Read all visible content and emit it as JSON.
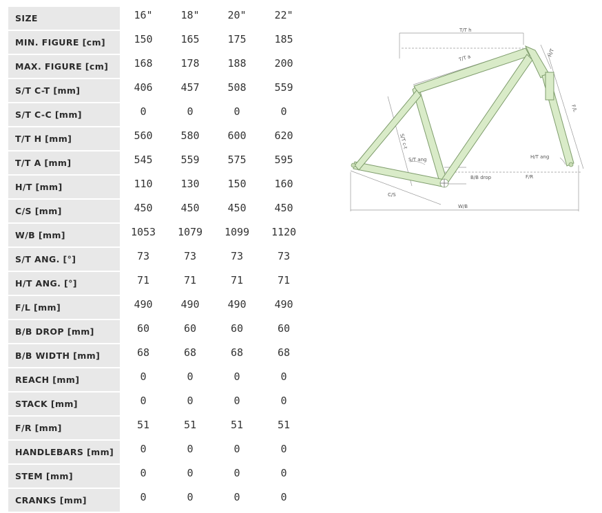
{
  "table": {
    "sizes": [
      "16\"",
      "18\"",
      "20\"",
      "22\""
    ],
    "header_label": "SIZE",
    "rows": [
      {
        "label": "MIN. FIGURE [cm]",
        "values": [
          "150",
          "165",
          "175",
          "185"
        ]
      },
      {
        "label": "MAX. FIGURE [cm]",
        "values": [
          "168",
          "178",
          "188",
          "200"
        ]
      },
      {
        "label": "S/T C-T [mm]",
        "values": [
          "406",
          "457",
          "508",
          "559"
        ]
      },
      {
        "label": "S/T C-C [mm]",
        "values": [
          "0",
          "0",
          "0",
          "0"
        ]
      },
      {
        "label": "T/T H [mm]",
        "values": [
          "560",
          "580",
          "600",
          "620"
        ]
      },
      {
        "label": "T/T A [mm]",
        "values": [
          "545",
          "559",
          "575",
          "595"
        ]
      },
      {
        "label": "H/T [mm]",
        "values": [
          "110",
          "130",
          "150",
          "160"
        ]
      },
      {
        "label": "C/S [mm]",
        "values": [
          "450",
          "450",
          "450",
          "450"
        ]
      },
      {
        "label": "W/B [mm]",
        "values": [
          "1053",
          "1079",
          "1099",
          "1120"
        ]
      },
      {
        "label": "S/T ANG. [°]",
        "values": [
          "73",
          "73",
          "73",
          "73"
        ]
      },
      {
        "label": "H/T ANG. [°]",
        "values": [
          "71",
          "71",
          "71",
          "71"
        ]
      },
      {
        "label": "F/L [mm]",
        "values": [
          "490",
          "490",
          "490",
          "490"
        ]
      },
      {
        "label": "B/B DROP [mm]",
        "values": [
          "60",
          "60",
          "60",
          "60"
        ]
      },
      {
        "label": "B/B WIDTH [mm]",
        "values": [
          "68",
          "68",
          "68",
          "68"
        ]
      },
      {
        "label": "REACH [mm]",
        "values": [
          "0",
          "0",
          "0",
          "0"
        ]
      },
      {
        "label": "STACK [mm]",
        "values": [
          "0",
          "0",
          "0",
          "0"
        ]
      },
      {
        "label": "F/R [mm]",
        "values": [
          "51",
          "51",
          "51",
          "51"
        ]
      },
      {
        "label": "HANDLEBARS [mm]",
        "values": [
          "0",
          "0",
          "0",
          "0"
        ]
      },
      {
        "label": "STEM [mm]",
        "values": [
          "0",
          "0",
          "0",
          "0"
        ]
      },
      {
        "label": "CRANKS [mm]",
        "values": [
          "0",
          "0",
          "0",
          "0"
        ]
      }
    ]
  },
  "diagram": {
    "labels": {
      "tt_h": "T/T h",
      "tt_a": "T/T a",
      "ht": "H/T",
      "st": "S/T c-t",
      "st_ang": "S/T ang",
      "ht_ang": "H/T ang",
      "bb_drop": "B/B drop",
      "cs": "C/S",
      "wb": "W/B",
      "fl": "F/L",
      "fr": "F/R"
    },
    "colors": {
      "frame_fill": "#d9ebc8",
      "frame_stroke": "#7e9c6c",
      "dim_line": "#888888",
      "label_bg": "#e8e8e8"
    }
  }
}
